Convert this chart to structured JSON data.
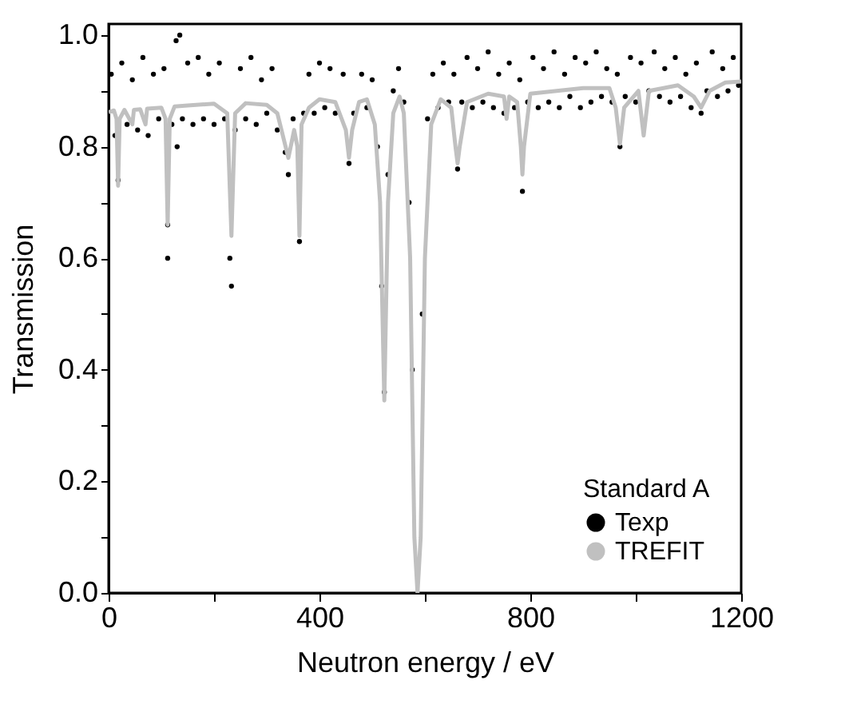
{
  "chart_data": {
    "type": "scatter",
    "xlabel": "Neutron energy / eV",
    "ylabel": "Transmission",
    "legend_title": "Standard A",
    "legend": "bottom right",
    "grid": false,
    "xlim": [
      0,
      1200
    ],
    "ylim": [
      0,
      1.02
    ],
    "xticks": [
      0,
      {
        "value": 200,
        "label": null
      },
      400,
      {
        "value": 600,
        "label": null
      },
      800,
      {
        "value": 1000,
        "label": null
      },
      1200
    ],
    "yticks": [
      {
        "value": 0,
        "label": "0.0"
      },
      {
        "value": 0.1,
        "label": null
      },
      {
        "value": 0.2,
        "label": "0.2"
      },
      {
        "value": 0.3,
        "label": null
      },
      {
        "value": 0.4,
        "label": "0.4"
      },
      {
        "value": 0.5,
        "label": null
      },
      {
        "value": 0.6,
        "label": "0.6"
      },
      {
        "value": 0.7,
        "label": null
      },
      {
        "value": 0.8,
        "label": "0.8"
      },
      {
        "value": 0.9,
        "label": null
      },
      {
        "value": 1.0,
        "label": "1.0"
      }
    ],
    "series": [
      {
        "name": "Texp",
        "marker": "circle",
        "color": "#000000",
        "x": [
          5,
          12,
          18,
          25,
          35,
          45,
          55,
          65,
          75,
          85,
          95,
          105,
          112,
          112,
          120,
          128,
          130,
          135,
          140,
          150,
          160,
          170,
          180,
          190,
          200,
          210,
          220,
          230,
          233,
          240,
          250,
          260,
          270,
          280,
          290,
          300,
          310,
          320,
          335,
          341,
          350,
          362,
          370,
          380,
          390,
          400,
          410,
          420,
          430,
          445,
          456,
          465,
          480,
          490,
          500,
          510,
          518,
          523,
          530,
          540,
          550,
          560,
          570,
          576,
          586,
          595,
          605,
          615,
          625,
          635,
          645,
          655,
          662,
          670,
          680,
          690,
          700,
          710,
          720,
          730,
          740,
          750,
          760,
          770,
          780,
          785,
          795,
          805,
          815,
          825,
          835,
          845,
          855,
          865,
          875,
          885,
          895,
          905,
          915,
          925,
          935,
          945,
          955,
          965,
          970,
          980,
          990,
          1000,
          1010,
          1015,
          1025,
          1035,
          1045,
          1055,
          1065,
          1075,
          1085,
          1095,
          1105,
          1115,
          1124,
          1135,
          1145,
          1155,
          1165,
          1175,
          1185,
          1195
        ],
        "values": [
          0.93,
          0.82,
          0.74,
          0.95,
          0.84,
          0.92,
          0.83,
          0.96,
          0.82,
          0.93,
          0.85,
          0.94,
          0.66,
          0.6,
          0.84,
          0.99,
          0.8,
          1.0,
          0.85,
          0.95,
          0.84,
          0.96,
          0.85,
          0.93,
          0.84,
          0.95,
          0.85,
          0.6,
          0.55,
          0.83,
          0.94,
          0.85,
          0.96,
          0.84,
          0.92,
          0.86,
          0.94,
          0.83,
          0.79,
          0.75,
          0.85,
          0.63,
          0.86,
          0.93,
          0.86,
          0.95,
          0.87,
          0.94,
          0.86,
          0.93,
          0.77,
          0.86,
          0.93,
          0.87,
          0.92,
          0.8,
          0.55,
          0.36,
          0.75,
          0.9,
          0.94,
          0.88,
          0.7,
          0.4,
          null,
          0.5,
          0.85,
          0.93,
          0.87,
          0.95,
          0.88,
          0.93,
          0.76,
          0.88,
          0.96,
          0.87,
          0.94,
          0.88,
          0.97,
          0.87,
          0.93,
          0.86,
          0.95,
          0.87,
          0.92,
          0.72,
          0.88,
          0.96,
          0.87,
          0.94,
          0.88,
          0.97,
          0.87,
          0.93,
          0.89,
          0.96,
          0.87,
          0.95,
          0.88,
          0.97,
          0.89,
          0.94,
          0.88,
          0.93,
          0.8,
          0.89,
          0.96,
          0.88,
          0.95,
          null,
          0.9,
          0.97,
          0.89,
          0.94,
          0.88,
          0.96,
          0.89,
          0.93,
          0.87,
          0.95,
          0.86,
          0.9,
          0.97,
          0.89,
          0.94,
          0.9,
          0.96,
          0.91
        ]
      },
      {
        "name": "TREFIT",
        "type": "line",
        "marker": "none",
        "color": "#c0c0c0",
        "line_style": "solid",
        "x": [
          0,
          10,
          15,
          18,
          21,
          30,
          45,
          48,
          60,
          70,
          73,
          100,
          108,
          112,
          116,
          125,
          150,
          200,
          225,
          233,
          240,
          260,
          300,
          320,
          341,
          352,
          358,
          362,
          366,
          380,
          400,
          430,
          450,
          456,
          462,
          475,
          490,
          505,
          515,
          523,
          530,
          540,
          552,
          560,
          572,
          580,
          586,
          592,
          600,
          612,
          630,
          650,
          658,
          662,
          666,
          680,
          720,
          750,
          755,
          760,
          775,
          782,
          785,
          788,
          800,
          850,
          900,
          950,
          962,
          970,
          978,
          1005,
          1015,
          1025,
          1080,
          1110,
          1124,
          1140,
          1170,
          1200
        ],
        "values": [
          0.862,
          0.865,
          0.85,
          0.73,
          0.85,
          0.866,
          0.84,
          0.866,
          0.867,
          0.84,
          0.868,
          0.87,
          0.85,
          0.66,
          0.85,
          0.872,
          0.874,
          0.877,
          0.86,
          0.64,
          0.86,
          0.878,
          0.875,
          0.86,
          0.78,
          0.83,
          0.8,
          0.64,
          0.84,
          0.87,
          0.885,
          0.88,
          0.83,
          0.78,
          0.83,
          0.88,
          0.885,
          0.84,
          0.7,
          0.345,
          0.7,
          0.86,
          0.89,
          0.86,
          0.6,
          0.1,
          0.0,
          0.1,
          0.6,
          0.84,
          0.885,
          0.87,
          0.8,
          0.77,
          0.8,
          0.88,
          0.895,
          0.89,
          0.85,
          0.89,
          0.88,
          0.8,
          0.75,
          0.8,
          0.895,
          0.9,
          0.905,
          0.905,
          0.87,
          0.805,
          0.87,
          0.9,
          0.82,
          0.9,
          0.91,
          0.89,
          0.87,
          0.9,
          0.915,
          0.917
        ]
      }
    ]
  }
}
